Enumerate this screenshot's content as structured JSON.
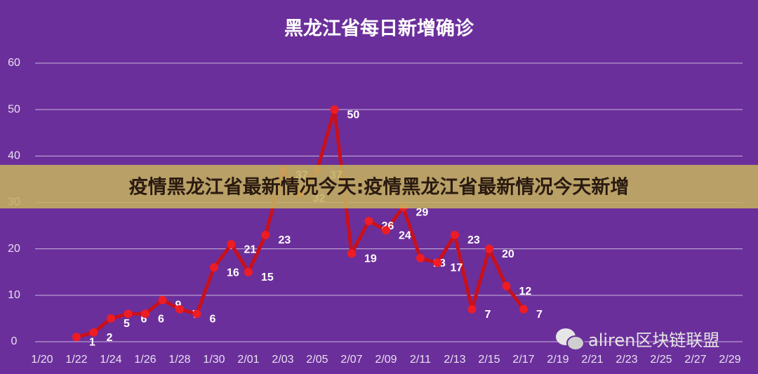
{
  "chart_data": {
    "type": "line",
    "title": "黑龙江省每日新增确诊",
    "categories": [
      "1/20",
      null,
      "1/22",
      null,
      "1/24",
      null,
      "1/26",
      null,
      "1/28",
      null,
      "1/30",
      null,
      "2/01",
      null,
      "2/03",
      null,
      "2/05",
      null,
      "2/07",
      null,
      "2/09",
      null,
      "2/11",
      null,
      "2/13",
      null,
      "2/15",
      null,
      "2/17",
      null,
      "2/19",
      null,
      "2/21",
      null,
      "2/23",
      null,
      "2/25",
      null,
      "2/27",
      null,
      "2/29"
    ],
    "series": [
      {
        "name": "新增确诊",
        "color": "#c8101c",
        "values": [
          null,
          null,
          1,
          2,
          5,
          6,
          6,
          9,
          7,
          6,
          16,
          21,
          15,
          23,
          37,
          32,
          37,
          50,
          19,
          26,
          24,
          29,
          18,
          17,
          23,
          7,
          20,
          12,
          7,
          null,
          null,
          null,
          null,
          null,
          null,
          null,
          null,
          null,
          null,
          null,
          null
        ]
      }
    ],
    "ylim": [
      0,
      60
    ],
    "yticks": [
      0,
      10,
      20,
      30,
      40,
      50,
      60
    ],
    "grid": true,
    "banner": "疫情黑龙江省最新情况今天:疫情黑龙江省最新情况今天新增",
    "watermark": "aliren区块链联盟"
  }
}
